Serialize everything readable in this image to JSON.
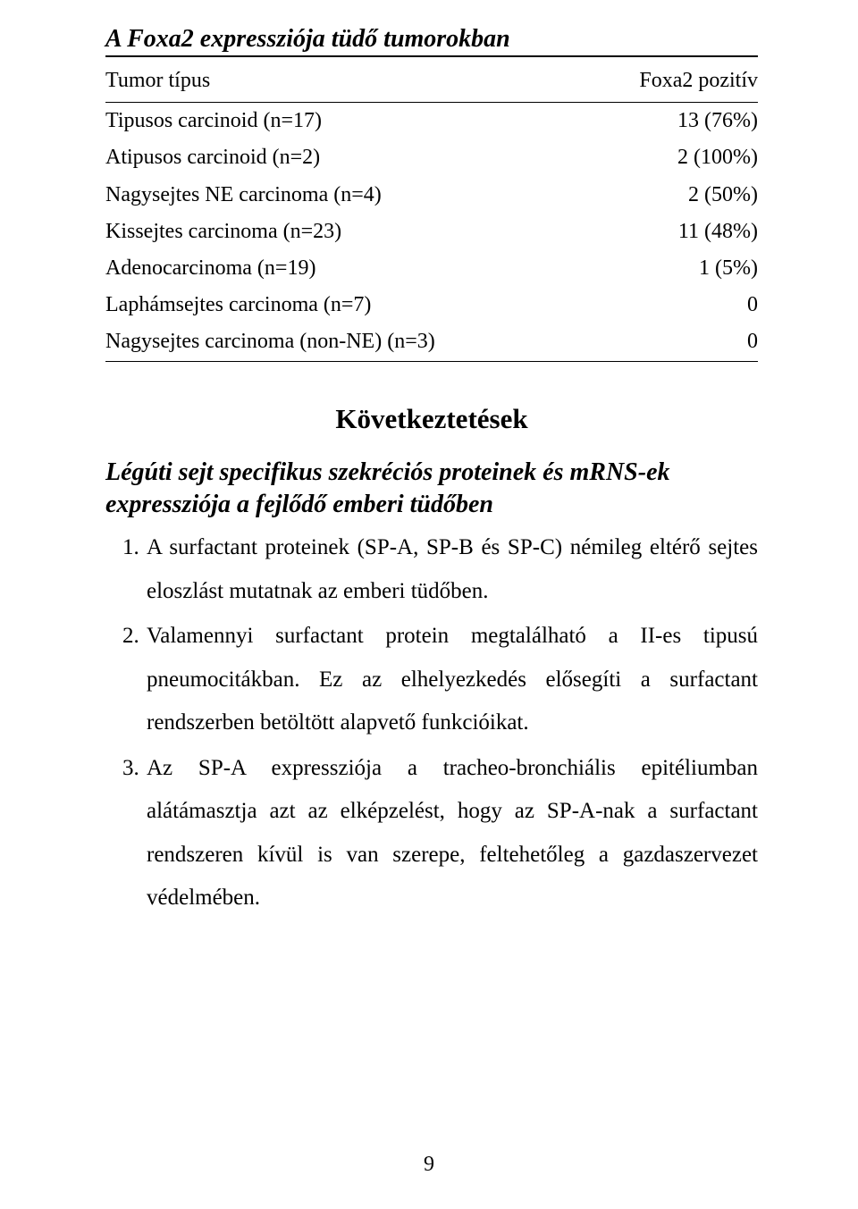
{
  "tableTitle": "A Foxa2 expressziója tüdő tumorokban",
  "table": {
    "columns": [
      "Tumor típus",
      "Foxa2 pozitív"
    ],
    "rows": [
      [
        "Tipusos carcinoid (n=17)",
        "13 (76%)"
      ],
      [
        "Atipusos carcinoid (n=2)",
        "2 (100%)"
      ],
      [
        "Nagysejtes NE carcinoma (n=4)",
        "2 (50%)"
      ],
      [
        "Kissejtes carcinoma (n=23)",
        "11 (48%)"
      ],
      [
        "Adenocarcinoma (n=19)",
        "1 (5%)"
      ],
      [
        "Laphámsejtes carcinoma (n=7)",
        "0"
      ],
      [
        "Nagysejtes carcinoma (non-NE) (n=3)",
        "0"
      ]
    ]
  },
  "conclusionsHeading": "Következtetések",
  "subheading": "Légúti sejt specifikus szekréciós proteinek és mRNS-ek expressziója a fejlődő emberi tüdőben",
  "items": [
    "A surfactant proteinek (SP-A, SP-B és SP-C) némileg eltérő sejtes eloszlást mutatnak az emberi tüdőben.",
    "Valamennyi surfactant protein megtalálható a II-es tipusú pneumocitákban.   Ez az elhelyezkedés elősegíti a surfactant rendszerben betöltött alapvető funkcióikat.",
    "Az SP-A expressziója a tracheo-bronchiális epitéliumban alátámasztja azt az elképzelést, hogy az SP-A-nak a surfactant rendszeren kívül is van szerepe, feltehetőleg a gazdaszervezet védelmében."
  ],
  "pageNumber": "9"
}
